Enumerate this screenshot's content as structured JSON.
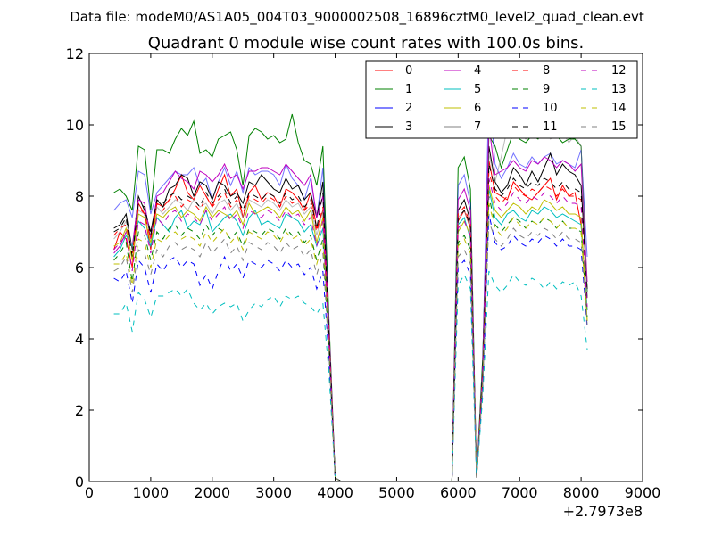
{
  "chart_data": {
    "type": "line",
    "suptitle": "Data file: modeM0/AS1A05_004T03_9000002508_16896cztM0_level2_quad_clean.evt",
    "title": "Quadrant 0 module wise count rates with 100.0s bins.",
    "xlabel": "",
    "ylabel": "",
    "xlim": [
      0,
      9000
    ],
    "ylim": [
      0,
      12
    ],
    "x_ticks": [
      "0",
      "1000",
      "2000",
      "3000",
      "4000",
      "5000",
      "6000",
      "7000",
      "8000",
      "9000"
    ],
    "y_ticks": [
      "0",
      "2",
      "4",
      "6",
      "8",
      "10",
      "12"
    ],
    "x_offset_label": "+2.7973e8",
    "legend_position": "top-right",
    "x": [
      400,
      500,
      600,
      700,
      800,
      900,
      1000,
      1100,
      1200,
      1300,
      1400,
      1500,
      1600,
      1700,
      1800,
      1900,
      2000,
      2100,
      2200,
      2300,
      2400,
      2500,
      2600,
      2700,
      2800,
      2900,
      3000,
      3100,
      3200,
      3300,
      3400,
      3500,
      3600,
      3700,
      3800,
      3900,
      4000,
      4100,
      5900,
      6000,
      6100,
      6200,
      6300,
      6400,
      6500,
      6600,
      6700,
      6800,
      6900,
      7000,
      7100,
      7200,
      7300,
      7400,
      7500,
      7600,
      7700,
      7800,
      7900,
      8000,
      8100
    ],
    "series": [
      {
        "name": "0",
        "color": "#ff0000",
        "dash": "solid",
        "values": [
          6.5,
          7.0,
          6.8,
          6.0,
          7.8,
          7.5,
          6.5,
          7.8,
          7.7,
          7.9,
          8.2,
          8.6,
          8.1,
          7.9,
          8.3,
          8.0,
          7.7,
          8.2,
          8.6,
          8.0,
          8.2,
          7.4,
          8.1,
          8.3,
          7.9,
          8.1,
          8.0,
          7.7,
          8.2,
          8.1,
          7.9,
          7.6,
          8.1,
          7.1,
          7.6,
          4.0,
          0.1,
          0.0,
          0.0,
          7.3,
          7.6,
          7.1,
          0.1,
          3.2,
          9.0,
          8.1,
          8.0,
          7.9,
          8.4,
          8.2,
          8.0,
          7.9,
          8.1,
          8.3,
          8.5,
          7.9,
          8.3,
          8.0,
          8.1,
          7.2,
          4.8
        ]
      },
      {
        "name": "1",
        "color": "#008000",
        "dash": "solid",
        "values": [
          8.1,
          8.2,
          8.0,
          7.6,
          9.4,
          9.3,
          7.6,
          9.3,
          9.3,
          9.2,
          9.6,
          9.9,
          9.7,
          10.1,
          9.2,
          9.3,
          9.1,
          9.6,
          9.7,
          9.8,
          9.3,
          8.3,
          9.7,
          9.9,
          9.8,
          9.6,
          9.7,
          9.5,
          9.6,
          10.3,
          9.5,
          9.0,
          8.9,
          8.3,
          9.4,
          4.5,
          0.1,
          0.0,
          0.0,
          8.8,
          9.1,
          8.2,
          0.1,
          3.5,
          9.7,
          9.4,
          8.8,
          9.3,
          9.8,
          9.6,
          9.5,
          9.7,
          9.6,
          9.9,
          9.8,
          9.7,
          9.5,
          9.6,
          9.6,
          9.4,
          5.3
        ]
      },
      {
        "name": "2",
        "color": "#0000ff",
        "dash": "solid",
        "values": [
          7.6,
          7.8,
          7.9,
          7.4,
          8.7,
          8.6,
          7.5,
          8.1,
          8.3,
          8.5,
          8.7,
          8.6,
          8.6,
          8.8,
          8.3,
          8.5,
          7.9,
          8.4,
          8.8,
          8.3,
          8.7,
          8.1,
          8.8,
          8.6,
          8.7,
          8.7,
          8.6,
          8.3,
          8.9,
          8.5,
          8.3,
          7.9,
          8.5,
          7.4,
          8.8,
          4.2,
          0.1,
          0.0,
          0.0,
          8.3,
          8.6,
          7.8,
          0.1,
          3.3,
          11.1,
          8.9,
          8.5,
          8.8,
          9.2,
          8.9,
          8.8,
          9.1,
          8.9,
          9.1,
          9.2,
          8.9,
          9.0,
          8.9,
          8.8,
          9.3,
          6.3
        ]
      },
      {
        "name": "3",
        "color": "#000000",
        "dash": "solid",
        "values": [
          7.1,
          7.2,
          7.5,
          6.5,
          8.0,
          7.6,
          7.0,
          7.9,
          7.7,
          8.2,
          8.3,
          8.6,
          8.5,
          8.0,
          8.4,
          8.3,
          7.9,
          8.4,
          8.3,
          8.0,
          8.1,
          7.8,
          8.4,
          8.3,
          8.6,
          8.4,
          8.2,
          8.1,
          8.5,
          8.2,
          8.3,
          7.9,
          8.1,
          7.4,
          8.4,
          4.1,
          0.1,
          0.0,
          0.0,
          7.6,
          7.9,
          7.3,
          0.1,
          3.1,
          9.4,
          8.4,
          8.1,
          8.3,
          8.8,
          8.6,
          8.3,
          8.7,
          8.4,
          8.8,
          9.2,
          8.6,
          8.9,
          8.7,
          8.6,
          8.3,
          5.4
        ]
      },
      {
        "name": "4",
        "color": "#bf00bf",
        "dash": "solid",
        "values": [
          6.4,
          6.6,
          7.0,
          6.6,
          7.9,
          7.8,
          6.8,
          8.0,
          8.1,
          8.4,
          8.7,
          8.5,
          8.4,
          8.2,
          8.7,
          8.6,
          8.4,
          8.6,
          8.9,
          8.5,
          8.6,
          8.2,
          8.7,
          8.7,
          8.8,
          8.8,
          8.7,
          8.6,
          8.9,
          8.7,
          8.5,
          8.3,
          8.6,
          7.4,
          8.0,
          4.3,
          0.1,
          0.0,
          0.0,
          7.9,
          8.2,
          7.6,
          0.1,
          3.2,
          10.0,
          8.6,
          8.7,
          8.8,
          9.0,
          8.8,
          8.7,
          9.0,
          8.9,
          9.1,
          9.0,
          8.8,
          9.0,
          8.9,
          8.7,
          8.9,
          5.6
        ]
      },
      {
        "name": "5",
        "color": "#00bfbf",
        "dash": "solid",
        "values": [
          6.3,
          6.5,
          6.9,
          6.6,
          7.3,
          7.1,
          6.6,
          7.4,
          7.2,
          7.0,
          7.4,
          7.6,
          7.1,
          7.3,
          7.2,
          7.6,
          7.0,
          7.2,
          7.4,
          7.5,
          7.3,
          6.9,
          7.4,
          7.6,
          7.2,
          7.3,
          7.2,
          7.1,
          7.5,
          7.4,
          7.3,
          7.0,
          7.2,
          6.6,
          7.1,
          3.9,
          0.1,
          0.0,
          0.0,
          7.2,
          7.4,
          6.8,
          0.1,
          3.0,
          8.2,
          7.4,
          7.2,
          7.5,
          7.6,
          7.4,
          7.3,
          7.6,
          7.5,
          7.7,
          7.6,
          7.4,
          7.5,
          7.4,
          7.3,
          7.2,
          4.8
        ]
      },
      {
        "name": "6",
        "color": "#bfbf00",
        "dash": "solid",
        "values": [
          6.6,
          6.7,
          7.1,
          6.2,
          7.5,
          7.4,
          6.7,
          7.5,
          7.4,
          7.6,
          7.7,
          7.4,
          7.6,
          7.5,
          7.3,
          7.7,
          7.4,
          7.6,
          7.5,
          7.4,
          7.6,
          7.2,
          7.8,
          7.5,
          7.6,
          7.7,
          7.6,
          7.4,
          7.7,
          7.5,
          7.6,
          7.3,
          7.6,
          6.7,
          7.4,
          3.9,
          0.1,
          0.0,
          0.0,
          7.0,
          7.3,
          6.9,
          0.1,
          3.0,
          8.3,
          7.6,
          7.4,
          7.6,
          7.8,
          7.7,
          7.5,
          7.7,
          7.6,
          7.9,
          7.8,
          7.6,
          7.7,
          7.5,
          7.5,
          7.4,
          4.5
        ]
      },
      {
        "name": "7",
        "color": "#808080",
        "dash": "solid",
        "values": [
          6.8,
          7.0,
          7.3,
          6.5,
          7.6,
          7.5,
          6.9,
          7.7,
          7.5,
          7.7,
          7.9,
          7.8,
          7.6,
          7.9,
          7.7,
          7.8,
          7.5,
          7.8,
          7.9,
          7.6,
          7.8,
          7.4,
          7.9,
          7.8,
          7.7,
          7.9,
          7.8,
          7.6,
          7.9,
          7.7,
          7.8,
          7.5,
          7.7,
          6.9,
          7.6,
          4.0,
          0.1,
          0.0,
          0.0,
          7.4,
          7.6,
          7.1,
          0.1,
          3.1,
          9.2,
          8.4,
          9.1,
          9.9,
          10.4,
          9.8,
          9.6,
          9.8,
          9.7,
          9.9,
          9.6,
          9.7,
          9.8,
          9.5,
          9.7,
          9.4,
          5.2
        ]
      },
      {
        "name": "8",
        "color": "#ff0000",
        "dash": "dashed",
        "values": [
          6.9,
          7.1,
          7.2,
          6.4,
          7.7,
          7.5,
          6.8,
          7.8,
          7.6,
          7.9,
          8.0,
          7.7,
          7.9,
          7.8,
          7.6,
          8.0,
          7.7,
          7.9,
          8.1,
          7.7,
          7.9,
          7.5,
          8.0,
          7.9,
          7.8,
          8.0,
          7.9,
          7.7,
          8.0,
          7.8,
          7.9,
          7.6,
          7.8,
          7.0,
          7.7,
          4.0,
          0.1,
          0.0,
          0.0,
          7.5,
          7.7,
          7.2,
          0.1,
          3.1,
          8.7,
          8.0,
          7.8,
          8.0,
          8.3,
          8.1,
          8.0,
          8.2,
          8.1,
          8.3,
          8.2,
          8.0,
          8.2,
          8.0,
          8.0,
          7.9,
          5.0
        ]
      },
      {
        "name": "9",
        "color": "#008000",
        "dash": "dashed",
        "values": [
          6.2,
          6.4,
          6.7,
          5.6,
          7.0,
          6.9,
          6.2,
          7.0,
          6.8,
          7.1,
          7.2,
          6.9,
          7.1,
          7.0,
          6.8,
          7.2,
          6.9,
          7.1,
          7.0,
          6.8,
          7.0,
          6.6,
          7.1,
          7.0,
          6.9,
          7.1,
          7.0,
          6.8,
          7.1,
          6.9,
          7.0,
          6.7,
          6.9,
          6.2,
          6.8,
          3.7,
          0.1,
          0.0,
          0.0,
          6.7,
          6.9,
          6.5,
          0.1,
          2.8,
          8.0,
          7.2,
          7.0,
          7.2,
          7.4,
          7.3,
          7.1,
          7.3,
          7.2,
          7.4,
          7.3,
          7.1,
          7.3,
          7.1,
          7.1,
          7.0,
          4.6
        ]
      },
      {
        "name": "10",
        "color": "#0000ff",
        "dash": "dashed",
        "values": [
          5.7,
          5.6,
          5.9,
          5.0,
          6.2,
          6.0,
          5.3,
          6.1,
          5.9,
          6.2,
          6.3,
          6.0,
          6.2,
          6.1,
          5.5,
          5.8,
          5.4,
          5.9,
          6.3,
          5.9,
          6.1,
          5.7,
          6.2,
          6.1,
          6.0,
          6.2,
          6.1,
          5.9,
          6.2,
          6.0,
          6.1,
          5.8,
          6.0,
          5.4,
          5.9,
          3.4,
          0.1,
          0.0,
          0.0,
          6.0,
          6.2,
          5.8,
          0.1,
          2.6,
          7.5,
          6.7,
          6.5,
          6.6,
          6.9,
          6.7,
          6.6,
          6.8,
          6.7,
          6.9,
          6.8,
          6.6,
          6.8,
          6.6,
          6.6,
          6.5,
          4.3
        ]
      },
      {
        "name": "11",
        "color": "#000000",
        "dash": "dashed",
        "values": [
          7.0,
          7.1,
          7.4,
          6.3,
          7.8,
          7.7,
          6.9,
          7.9,
          7.8,
          8.0,
          8.1,
          7.9,
          8.0,
          7.9,
          7.7,
          8.1,
          7.8,
          8.0,
          8.2,
          7.8,
          8.0,
          7.6,
          8.1,
          8.0,
          7.9,
          8.1,
          8.0,
          7.8,
          8.1,
          7.9,
          8.0,
          7.7,
          7.9,
          7.1,
          8.1,
          4.1,
          0.1,
          0.0,
          0.0,
          7.4,
          7.6,
          7.2,
          0.1,
          3.1,
          8.9,
          8.2,
          8.0,
          8.2,
          8.5,
          8.3,
          8.2,
          8.4,
          8.3,
          8.5,
          8.4,
          8.2,
          8.4,
          8.2,
          8.2,
          8.1,
          5.1
        ]
      },
      {
        "name": "12",
        "color": "#bf00bf",
        "dash": "dashed",
        "values": [
          6.5,
          6.7,
          6.9,
          5.9,
          7.3,
          7.2,
          6.4,
          7.4,
          7.2,
          7.5,
          7.6,
          7.3,
          7.5,
          7.4,
          7.2,
          7.6,
          7.3,
          7.5,
          7.7,
          7.3,
          7.5,
          7.1,
          7.6,
          7.5,
          7.4,
          7.6,
          7.5,
          7.3,
          7.6,
          7.4,
          7.5,
          7.2,
          7.4,
          6.6,
          7.3,
          3.8,
          0.1,
          0.0,
          0.0,
          7.1,
          7.3,
          6.9,
          0.1,
          2.9,
          8.5,
          7.8,
          7.6,
          7.8,
          8.1,
          7.9,
          7.8,
          8.0,
          7.9,
          8.1,
          8.0,
          7.8,
          8.0,
          7.8,
          7.8,
          7.7,
          4.9
        ]
      },
      {
        "name": "13",
        "color": "#00bfbf",
        "dash": "dashed",
        "values": [
          4.7,
          4.7,
          5.0,
          4.2,
          5.3,
          5.1,
          4.6,
          5.2,
          5.2,
          5.3,
          5.4,
          5.2,
          5.4,
          5.0,
          4.8,
          5.0,
          4.7,
          4.9,
          5.0,
          4.9,
          5.0,
          4.5,
          4.8,
          5.0,
          4.9,
          5.1,
          5.2,
          4.9,
          5.2,
          5.1,
          5.2,
          5.0,
          4.9,
          4.7,
          5.0,
          3.0,
          0.1,
          0.0,
          0.0,
          5.5,
          5.8,
          5.4,
          0.1,
          2.4,
          5.9,
          5.5,
          5.3,
          5.5,
          5.8,
          5.6,
          5.5,
          5.7,
          5.6,
          5.4,
          5.6,
          5.4,
          5.6,
          5.5,
          5.6,
          5.2,
          3.7
        ]
      },
      {
        "name": "14",
        "color": "#bfbf00",
        "dash": "dashed",
        "values": [
          6.1,
          6.1,
          6.4,
          5.5,
          6.8,
          6.7,
          6.0,
          6.8,
          6.7,
          6.9,
          7.0,
          6.8,
          6.9,
          6.8,
          6.6,
          7.0,
          6.7,
          6.9,
          7.1,
          6.7,
          6.9,
          6.5,
          7.0,
          6.9,
          6.8,
          7.0,
          6.9,
          6.7,
          7.0,
          6.8,
          6.9,
          6.6,
          6.8,
          6.1,
          6.7,
          3.6,
          0.1,
          0.0,
          0.0,
          6.6,
          6.8,
          6.4,
          0.1,
          2.8,
          7.8,
          7.1,
          6.9,
          7.1,
          7.4,
          7.2,
          7.1,
          7.3,
          7.2,
          7.4,
          7.3,
          7.1,
          7.3,
          7.1,
          7.1,
          7.0,
          4.5
        ]
      },
      {
        "name": "15",
        "color": "#808080",
        "dash": "dashed",
        "values": [
          5.9,
          6.0,
          6.3,
          5.3,
          6.5,
          6.4,
          5.8,
          6.5,
          6.3,
          6.6,
          6.7,
          6.5,
          6.6,
          6.5,
          6.3,
          6.7,
          6.4,
          6.6,
          6.8,
          6.4,
          6.6,
          6.2,
          6.7,
          6.6,
          6.5,
          6.7,
          6.6,
          6.4,
          6.7,
          6.5,
          6.6,
          6.3,
          6.5,
          5.8,
          6.4,
          3.5,
          0.1,
          0.0,
          0.0,
          6.3,
          6.5,
          6.1,
          0.1,
          2.7,
          7.3,
          6.8,
          6.6,
          6.8,
          7.1,
          6.9,
          6.8,
          7.0,
          6.9,
          7.1,
          7.0,
          6.8,
          7.0,
          6.8,
          6.8,
          6.7,
          4.4
        ]
      }
    ]
  }
}
